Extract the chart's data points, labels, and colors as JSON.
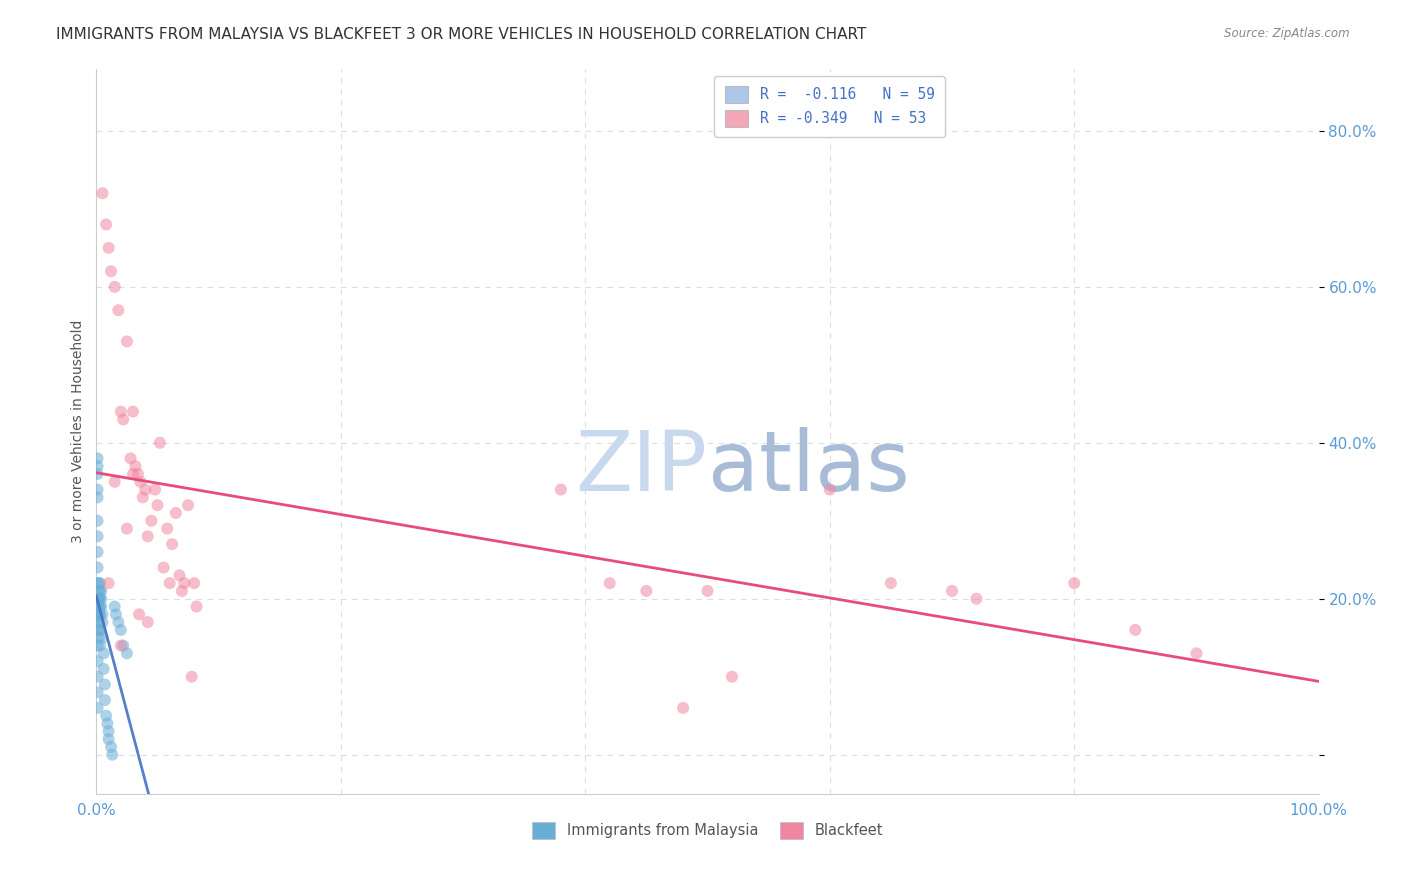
{
  "title": "IMMIGRANTS FROM MALAYSIA VS BLACKFEET 3 OR MORE VEHICLES IN HOUSEHOLD CORRELATION CHART",
  "source": "Source: ZipAtlas.com",
  "ylabel": "3 or more Vehicles in Household",
  "xlim": [
    0.0,
    1.0
  ],
  "ylim": [
    -0.05,
    0.88
  ],
  "yticks": [
    0.0,
    0.2,
    0.4,
    0.6,
    0.8
  ],
  "ytick_labels": [
    "",
    "20.0%",
    "40.0%",
    "60.0%",
    "80.0%"
  ],
  "xticks": [
    0.0,
    0.2,
    0.4,
    0.6,
    0.8,
    1.0
  ],
  "xtick_labels": [
    "0.0%",
    "",
    "",
    "",
    "",
    "100.0%"
  ],
  "legend_items": [
    {
      "label": "R =  -0.116   N = 59",
      "color": "#aec6e8"
    },
    {
      "label": "R = -0.349   N = 53",
      "color": "#f4a7b9"
    }
  ],
  "malaysia_x": [
    0.001,
    0.001,
    0.001,
    0.001,
    0.001,
    0.001,
    0.001,
    0.001,
    0.001,
    0.001,
    0.001,
    0.001,
    0.001,
    0.001,
    0.001,
    0.001,
    0.001,
    0.001,
    0.001,
    0.001,
    0.002,
    0.002,
    0.002,
    0.002,
    0.002,
    0.002,
    0.002,
    0.002,
    0.002,
    0.002,
    0.003,
    0.003,
    0.003,
    0.003,
    0.003,
    0.003,
    0.003,
    0.004,
    0.004,
    0.004,
    0.005,
    0.005,
    0.005,
    0.006,
    0.006,
    0.007,
    0.007,
    0.008,
    0.009,
    0.01,
    0.01,
    0.012,
    0.013,
    0.015,
    0.016,
    0.018,
    0.02,
    0.022,
    0.025
  ],
  "malaysia_y": [
    0.38,
    0.37,
    0.36,
    0.34,
    0.33,
    0.3,
    0.28,
    0.26,
    0.24,
    0.22,
    0.2,
    0.19,
    0.18,
    0.17,
    0.16,
    0.14,
    0.12,
    0.1,
    0.08,
    0.06,
    0.21,
    0.2,
    0.2,
    0.19,
    0.18,
    0.18,
    0.17,
    0.16,
    0.15,
    0.22,
    0.21,
    0.2,
    0.19,
    0.18,
    0.16,
    0.14,
    0.22,
    0.21,
    0.2,
    0.19,
    0.18,
    0.17,
    0.15,
    0.13,
    0.11,
    0.09,
    0.07,
    0.05,
    0.04,
    0.03,
    0.02,
    0.01,
    0.0,
    0.19,
    0.18,
    0.17,
    0.16,
    0.14,
    0.13
  ],
  "blackfeet_x": [
    0.005,
    0.008,
    0.01,
    0.012,
    0.015,
    0.018,
    0.02,
    0.022,
    0.025,
    0.028,
    0.03,
    0.03,
    0.032,
    0.034,
    0.036,
    0.038,
    0.04,
    0.042,
    0.045,
    0.048,
    0.05,
    0.052,
    0.055,
    0.058,
    0.06,
    0.062,
    0.065,
    0.068,
    0.07,
    0.072,
    0.075,
    0.078,
    0.08,
    0.082,
    0.015,
    0.025,
    0.035,
    0.042,
    0.02,
    0.01,
    0.38,
    0.42,
    0.45,
    0.5,
    0.48,
    0.52,
    0.6,
    0.65,
    0.7,
    0.72,
    0.8,
    0.85,
    0.9
  ],
  "blackfeet_y": [
    0.72,
    0.68,
    0.65,
    0.62,
    0.6,
    0.57,
    0.44,
    0.43,
    0.53,
    0.38,
    0.36,
    0.44,
    0.37,
    0.36,
    0.35,
    0.33,
    0.34,
    0.28,
    0.3,
    0.34,
    0.32,
    0.4,
    0.24,
    0.29,
    0.22,
    0.27,
    0.31,
    0.23,
    0.21,
    0.22,
    0.32,
    0.1,
    0.22,
    0.19,
    0.35,
    0.29,
    0.18,
    0.17,
    0.14,
    0.22,
    0.34,
    0.22,
    0.21,
    0.21,
    0.06,
    0.1,
    0.34,
    0.22,
    0.21,
    0.2,
    0.22,
    0.16,
    0.13
  ],
  "malaysia_color": "#6aaed6",
  "blackfeet_color": "#f087a0",
  "malaysia_line_color": "#4472c4",
  "blackfeet_line_color": "#e84c7d",
  "background_color": "#ffffff",
  "grid_color": "#dddddd",
  "title_fontsize": 11,
  "axis_fontsize": 9
}
